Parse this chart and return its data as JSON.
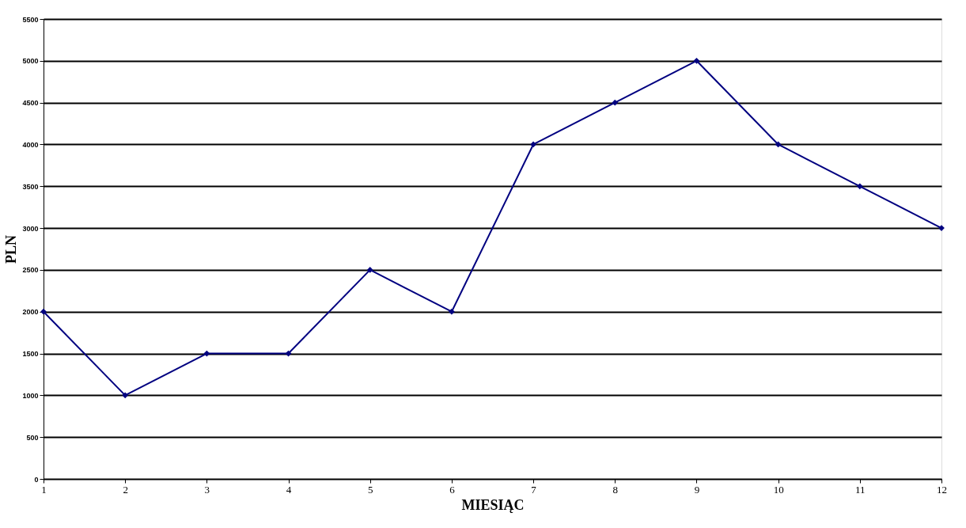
{
  "chart_data": {
    "type": "line",
    "xlabel": "MIESIĄC",
    "ylabel": "PLN",
    "categories": [
      "1",
      "2",
      "3",
      "4",
      "5",
      "6",
      "7",
      "8",
      "9",
      "10",
      "11",
      "12"
    ],
    "series": [
      {
        "color": "#000080",
        "values": [
          2000,
          1000,
          1500,
          1500,
          2500,
          2000,
          4000,
          4500,
          5000,
          4000,
          3500,
          3000
        ]
      }
    ],
    "ylim": [
      0,
      5500
    ],
    "yticks": [
      0,
      500,
      1000,
      1500,
      2000,
      2500,
      3000,
      3500,
      4000,
      4500,
      5000,
      5500
    ],
    "grid": "y",
    "marker": "diamond",
    "line_style": "solid"
  }
}
